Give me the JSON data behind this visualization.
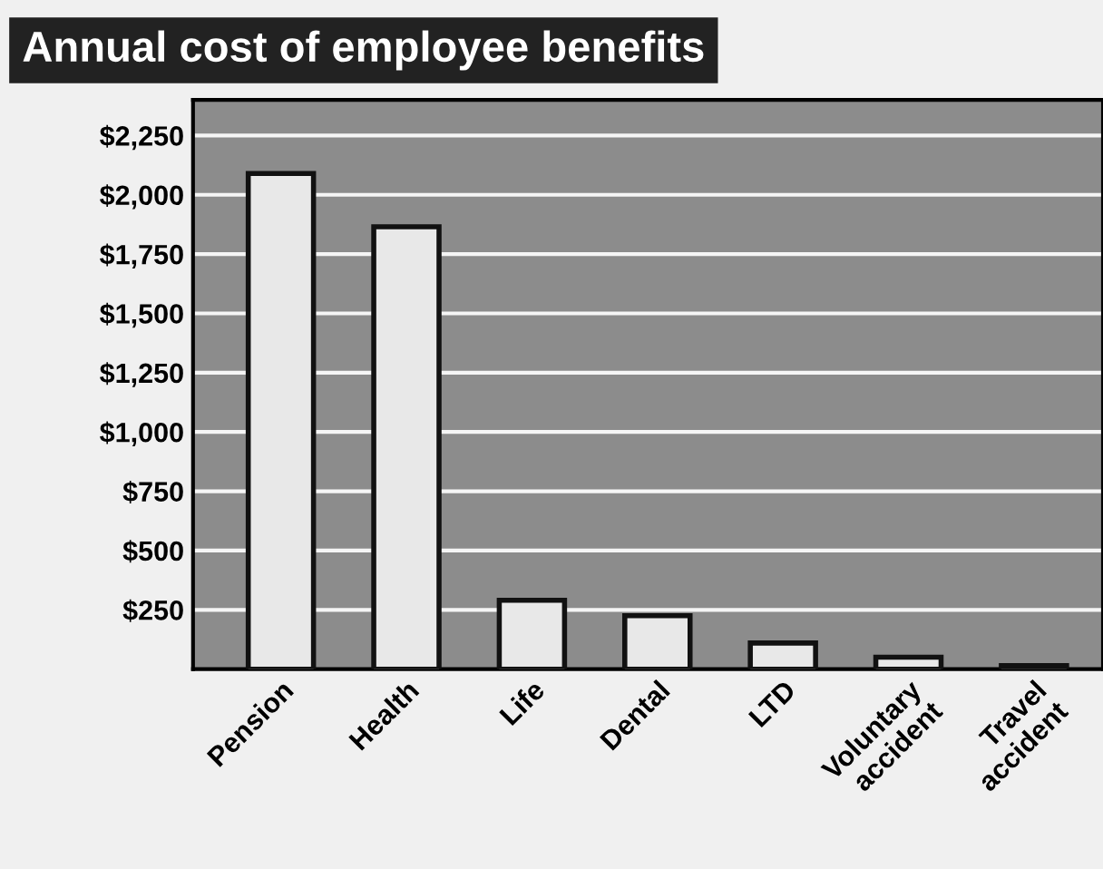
{
  "chart_data": {
    "type": "bar",
    "title": "Annual cost of employee benefits",
    "categories": [
      "Pension",
      "Health",
      "Life",
      "Dental",
      "LTD",
      "Voluntary\naccident",
      "Travel\naccident"
    ],
    "values": [
      2090,
      1865,
      290,
      225,
      110,
      50,
      15
    ],
    "color": "#e8e8e8",
    "ylim": [
      0,
      2400
    ],
    "yticks": [
      {
        "value": 250,
        "label": "$250"
      },
      {
        "value": 500,
        "label": "$500"
      },
      {
        "value": 750,
        "label": "$750"
      },
      {
        "value": 1000,
        "label": "$1,000"
      },
      {
        "value": 1250,
        "label": "$1,250"
      },
      {
        "value": 1500,
        "label": "$1,500"
      },
      {
        "value": 1750,
        "label": "$1,750"
      },
      {
        "value": 2000,
        "label": "$2,000"
      },
      {
        "value": 2250,
        "label": "$2,250"
      }
    ],
    "grid": "y"
  }
}
